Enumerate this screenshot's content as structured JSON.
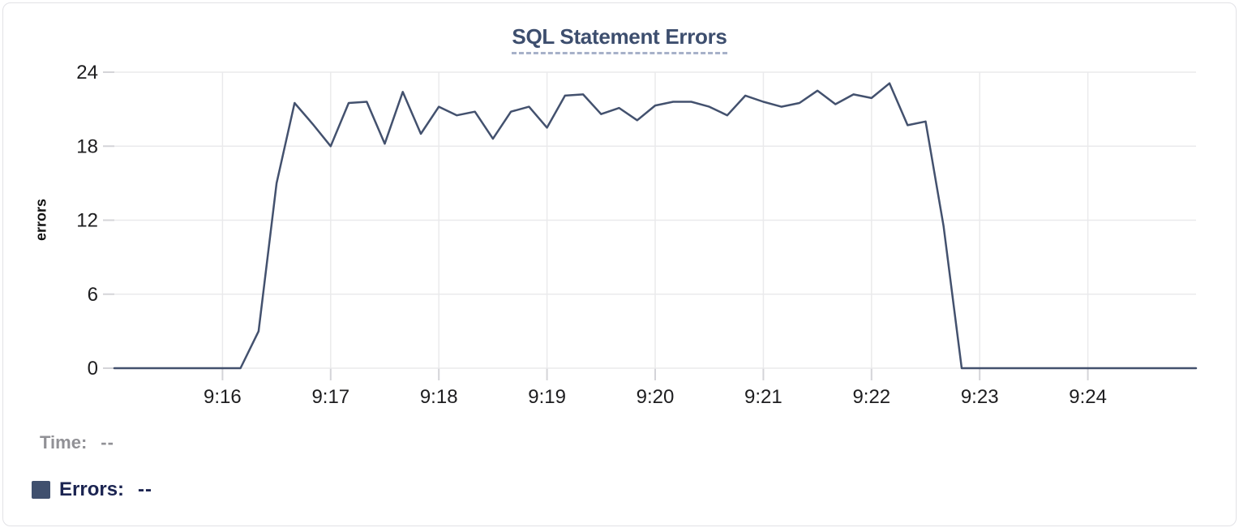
{
  "chart_data": {
    "type": "line",
    "title": "SQL Statement Errors",
    "xlabel": "",
    "ylabel": "errors",
    "ylim": [
      0,
      24
    ],
    "y_ticks": [
      0,
      6,
      12,
      18,
      24
    ],
    "x_domain_seconds": [
      0,
      600
    ],
    "x_ticks": [
      {
        "label": "9:16",
        "seconds": 60
      },
      {
        "label": "9:17",
        "seconds": 120
      },
      {
        "label": "9:18",
        "seconds": 180
      },
      {
        "label": "9:19",
        "seconds": 240
      },
      {
        "label": "9:20",
        "seconds": 300
      },
      {
        "label": "9:21",
        "seconds": 360
      },
      {
        "label": "9:22",
        "seconds": 420
      },
      {
        "label": "9:23",
        "seconds": 480
      },
      {
        "label": "9:24",
        "seconds": 540
      }
    ],
    "grid": true,
    "legend_position": "bottom-left",
    "series": [
      {
        "name": "Errors",
        "start_time": "9:15:00",
        "end_time": "9:25:00",
        "interval_seconds": 10,
        "values": [
          0,
          0,
          0,
          0,
          0,
          0,
          0,
          0,
          3,
          15,
          21.5,
          19.8,
          18,
          21.5,
          21.6,
          18.2,
          22.4,
          19,
          21.2,
          20.5,
          20.8,
          18.6,
          20.8,
          21.2,
          19.5,
          22.1,
          22.2,
          20.6,
          21.1,
          20.1,
          21.3,
          21.6,
          21.6,
          21.2,
          20.5,
          22.1,
          21.6,
          21.2,
          21.5,
          22.5,
          21.4,
          22.2,
          21.9,
          23.1,
          19.7,
          20,
          11.5,
          0,
          0,
          0,
          0,
          0,
          0,
          0,
          0,
          0,
          0,
          0,
          0,
          0,
          0
        ]
      }
    ]
  },
  "readout": {
    "time_label": "Time:",
    "time_value": "--",
    "errors_label": "Errors:",
    "errors_value": "--"
  },
  "colors": {
    "line": "#43516e",
    "title": "#3d4e6e",
    "title_underline": "#a7b1c9",
    "grid": "#eaeaec",
    "tick": "#d4d4d8",
    "tick_text": "#1d1d1f",
    "time_text": "#919196",
    "errors_text": "#1b2451",
    "swatch": "#40506e",
    "card_border": "#e2e2e6"
  }
}
